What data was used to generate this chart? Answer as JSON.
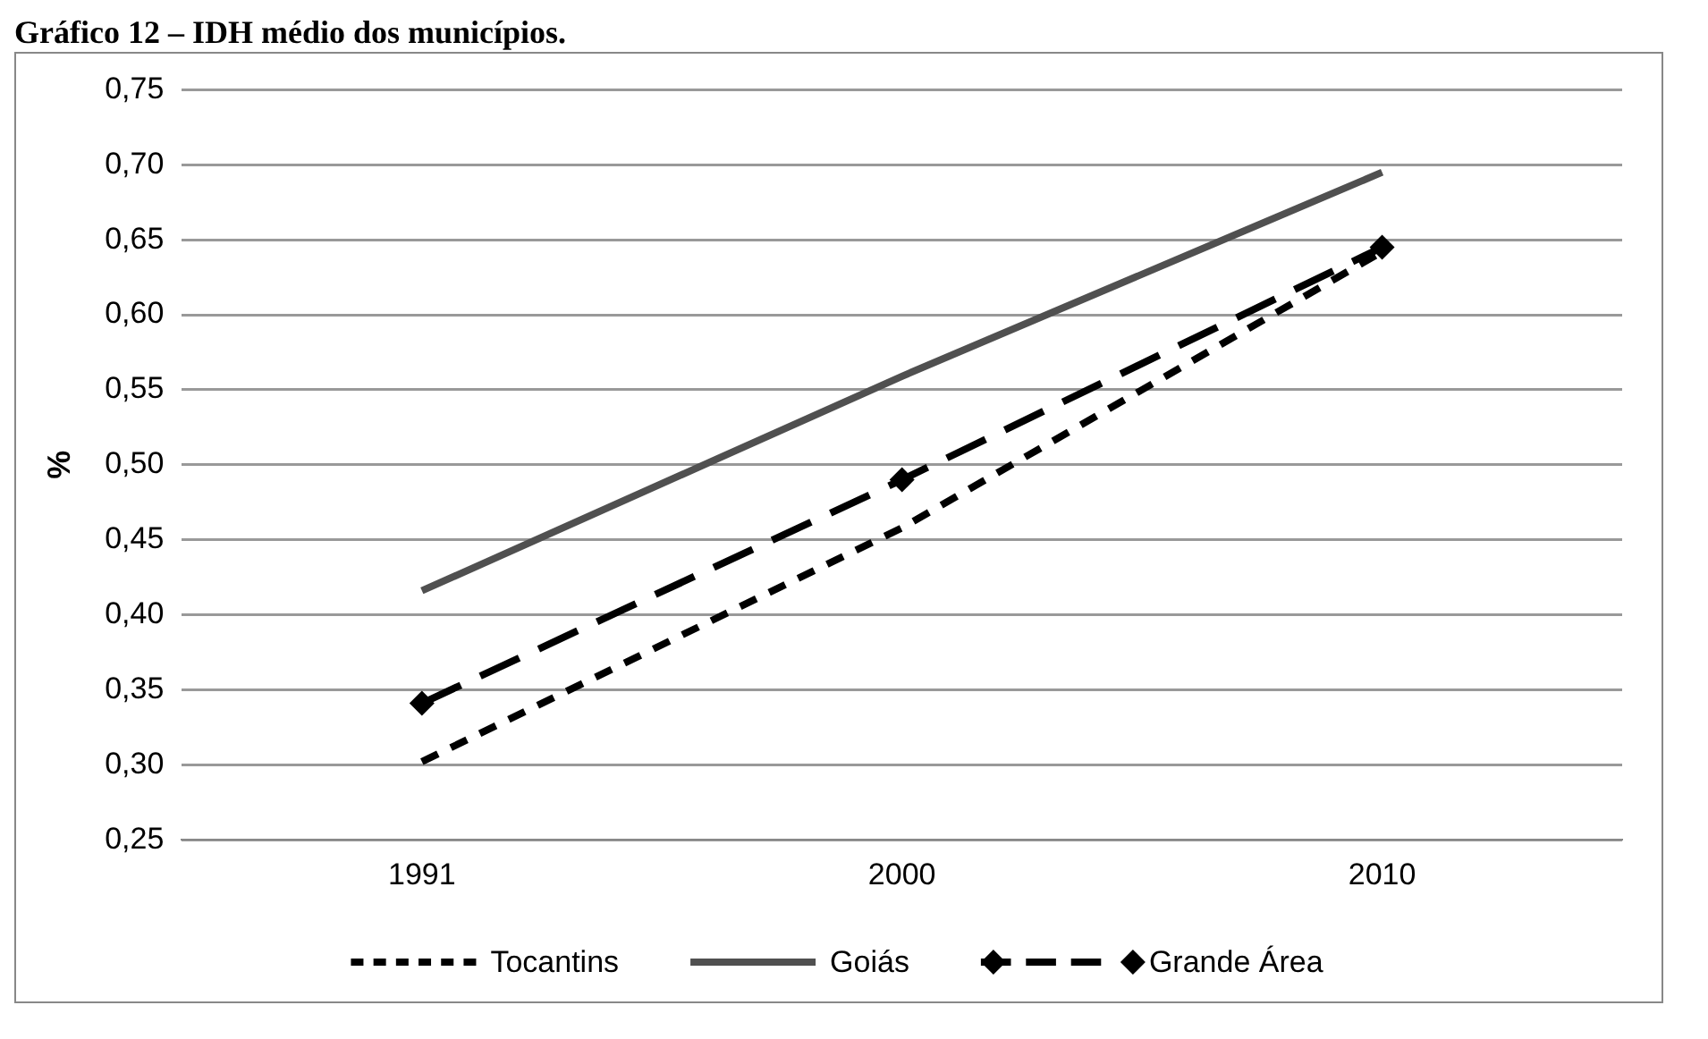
{
  "chart_data": {
    "type": "line",
    "title": "Gráfico 12 – IDH médio dos municípios.",
    "ylabel": "%",
    "categories": [
      "1991",
      "2000",
      "2010"
    ],
    "series": [
      {
        "name": "Tocantins",
        "color": "#000000",
        "values": [
          0.302,
          0.458,
          0.642
        ],
        "line_style": "dashed",
        "marker": "none"
      },
      {
        "name": "Goiás",
        "color": "#505050",
        "values": [
          0.416,
          0.559,
          0.695
        ],
        "line_style": "solid",
        "marker": "none"
      },
      {
        "name": "Grande Área",
        "color": "#000000",
        "values": [
          0.341,
          0.49,
          0.645
        ],
        "line_style": "dashed",
        "marker": "diamond"
      }
    ],
    "ylim": [
      0.25,
      0.75
    ],
    "yticks": [
      {
        "value": 0.25,
        "label": "0,25"
      },
      {
        "value": 0.3,
        "label": "0,30"
      },
      {
        "value": 0.35,
        "label": "0,35"
      },
      {
        "value": 0.4,
        "label": "0,40"
      },
      {
        "value": 0.45,
        "label": "0,45"
      },
      {
        "value": 0.5,
        "label": "0,50"
      },
      {
        "value": 0.55,
        "label": "0,55"
      },
      {
        "value": 0.6,
        "label": "0,60"
      },
      {
        "value": 0.65,
        "label": "0,65"
      },
      {
        "value": 0.7,
        "label": "0,70"
      },
      {
        "value": 0.75,
        "label": "0,75"
      }
    ],
    "grid": "y",
    "legend": "bottom"
  }
}
